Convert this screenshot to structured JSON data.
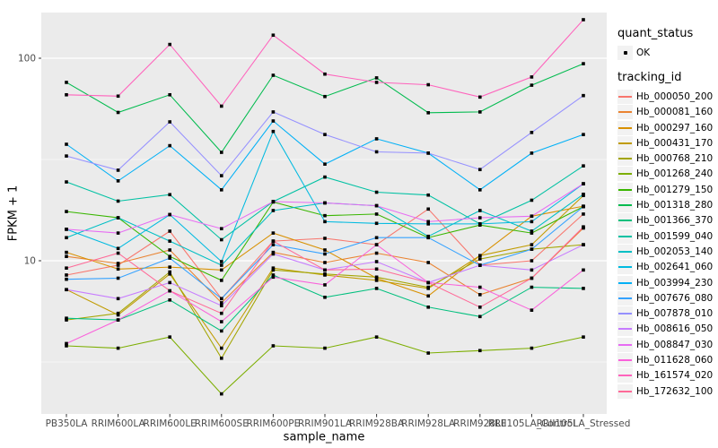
{
  "chart": {
    "xlabel": "sample_name",
    "ylabel": "FPKM + 1",
    "legend_quant_title": "quant_status",
    "legend_quant_items": [
      "OK"
    ],
    "legend_tracking_title": "tracking_id"
  },
  "chart_data": {
    "type": "line",
    "title": "",
    "xlabel": "sample_name",
    "ylabel": "FPKM + 1",
    "yscale": "log10",
    "ylim": [
      1.7,
      180
    ],
    "yticks": [
      10,
      100
    ],
    "minor_gridlines": [
      3.162,
      31.623
    ],
    "grid": true,
    "legend_position": "right",
    "legend_titles": [
      "quant_status",
      "tracking_id"
    ],
    "quant_status_value": "OK",
    "point_shape": "small-black-square",
    "categories": [
      "PB350LA",
      "RRIM600LA",
      "RRIM600LE",
      "RRIM600SE",
      "RRIM600PE",
      "RRIM901LA",
      "RRIM928BA",
      "RRIM928LA",
      "RRIM928LE",
      "RRII105LA_Control",
      "RRII105LA_Stressed"
    ],
    "series": [
      {
        "name": "Hb_000050_200",
        "color": "#F8766D",
        "values": [
          8.5,
          9.5,
          14,
          6.5,
          12.5,
          12.9,
          12,
          18,
          9.5,
          10,
          17
        ]
      },
      {
        "name": "Hb_000081_160",
        "color": "#EA8331",
        "values": [
          10.5,
          9.7,
          11.3,
          6.2,
          11,
          9.8,
          10.9,
          9.8,
          6.8,
          8.2,
          14.5
        ]
      },
      {
        "name": "Hb_000297_160",
        "color": "#D89000",
        "values": [
          11,
          9.1,
          9.3,
          9,
          13.7,
          11.3,
          8.2,
          6.7,
          10.6,
          16.6,
          18.6
        ]
      },
      {
        "name": "Hb_000431_170",
        "color": "#C09B00",
        "values": [
          7.2,
          5.4,
          8.6,
          3.7,
          9.2,
          8.5,
          8,
          7.3,
          10.6,
          12,
          21
        ]
      },
      {
        "name": "Hb_000768_210",
        "color": "#A3A500",
        "values": [
          5.1,
          5.5,
          8.8,
          3.3,
          9,
          8.6,
          8.3,
          7.4,
          10.2,
          11.4,
          12
        ]
      },
      {
        "name": "Hb_001268_240",
        "color": "#7CAE00",
        "values": [
          3.8,
          3.7,
          4.2,
          2.2,
          3.8,
          3.7,
          4.2,
          3.5,
          3.6,
          3.7,
          4.2
        ]
      },
      {
        "name": "Hb_001279_150",
        "color": "#39B600",
        "values": [
          17.5,
          16.3,
          10.5,
          8,
          19.5,
          16.7,
          17,
          13,
          15,
          13.7,
          18.5
        ]
      },
      {
        "name": "Hb_001318_280",
        "color": "#00BB4E",
        "values": [
          76,
          54,
          66,
          34.3,
          82.4,
          64.7,
          80,
          53.8,
          54.3,
          73.6,
          94
        ]
      },
      {
        "name": "Hb_001366_370",
        "color": "#00BF7D",
        "values": [
          5.2,
          5.1,
          6.4,
          4.5,
          8.5,
          6.6,
          7.3,
          5.9,
          5.3,
          7.4,
          7.3
        ]
      },
      {
        "name": "Hb_001599_040",
        "color": "#00C1A3",
        "values": [
          24.5,
          19.7,
          21.2,
          12.7,
          19.6,
          25.9,
          21.8,
          21.1,
          15.2,
          19.9,
          29.4
        ]
      },
      {
        "name": "Hb_002053_140",
        "color": "#00BFC4",
        "values": [
          13,
          16.3,
          12.5,
          9.5,
          17.7,
          19.3,
          18.7,
          13.2,
          17.7,
          14,
          21.3
        ]
      },
      {
        "name": "Hb_002641_060",
        "color": "#00BAE0",
        "values": [
          14.3,
          11.5,
          16.9,
          9.9,
          43.5,
          15.6,
          15.3,
          15.2,
          15.2,
          15.6,
          24
        ]
      },
      {
        "name": "Hb_003994_230",
        "color": "#00B0F6",
        "values": [
          37.6,
          24.8,
          37,
          22.4,
          49,
          30,
          40,
          34,
          22.4,
          34,
          42
        ]
      },
      {
        "name": "Hb_007676_080",
        "color": "#35A2FF",
        "values": [
          8.1,
          8.2,
          10.3,
          6.5,
          12,
          10.8,
          13,
          13,
          9.5,
          11.4,
          18.5
        ]
      },
      {
        "name": "Hb_007878_010",
        "color": "#9590FF",
        "values": [
          32.9,
          28,
          48.5,
          26.3,
          54.3,
          42,
          34.5,
          34,
          28.2,
          43,
          65.4
        ]
      },
      {
        "name": "Hb_008616_050",
        "color": "#C77CFF",
        "values": [
          7.2,
          6.5,
          7.8,
          6,
          10.8,
          9,
          9.9,
          7.8,
          9.5,
          9,
          12
        ]
      },
      {
        "name": "Hb_008847_030",
        "color": "#E76BF3",
        "values": [
          14.3,
          13.7,
          16.9,
          14.4,
          19.6,
          19.3,
          18.7,
          15.6,
          16.3,
          16.6,
          24
        ]
      },
      {
        "name": "Hb_011628_060",
        "color": "#FA62DB",
        "values": [
          3.9,
          5.1,
          7.1,
          5,
          8.3,
          7.6,
          12,
          7.8,
          7.4,
          5.7,
          9
        ]
      },
      {
        "name": "Hb_161574_020",
        "color": "#FF62BC",
        "values": [
          66,
          65,
          117,
          58,
          130,
          83.5,
          76,
          74,
          64.3,
          80.8,
          155
        ]
      },
      {
        "name": "Hb_172632_100",
        "color": "#FF6A98",
        "values": [
          9.2,
          10.9,
          7.1,
          5.5,
          12.5,
          9,
          9.1,
          7.8,
          5.9,
          8.2,
          14.7
        ]
      }
    ]
  },
  "colors": {
    "panel_bg": "#EBEBEB",
    "gridline": "#FFFFFF",
    "tick_label": "#4D4D4D",
    "tick_mark": "#333333",
    "point": "#000000",
    "legend_key_bg": "#F2F2F2"
  }
}
